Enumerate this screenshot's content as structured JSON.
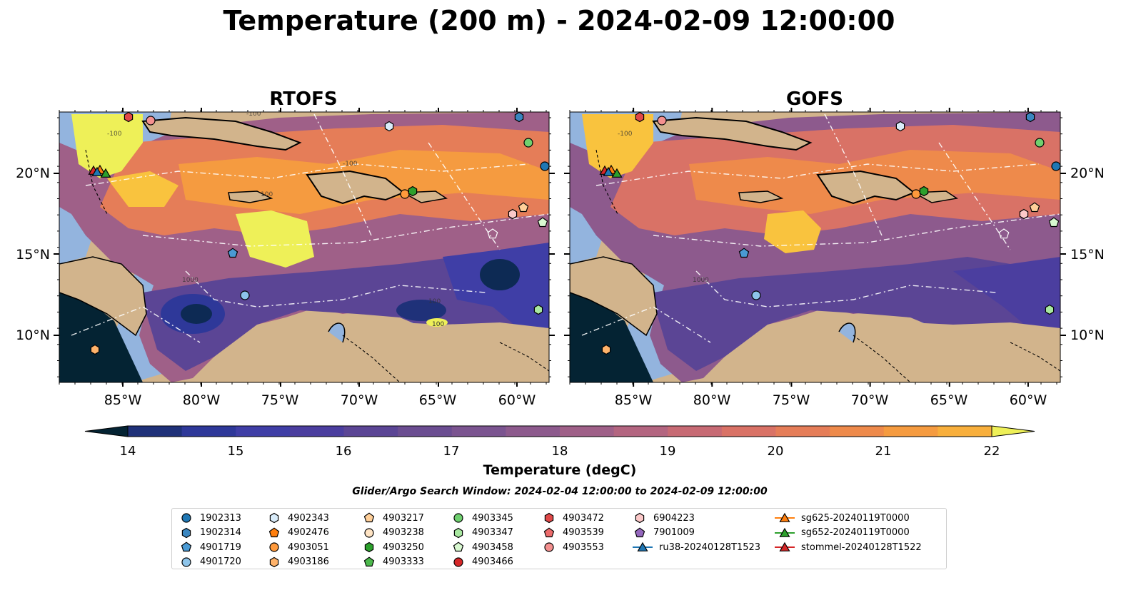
{
  "title": "Temperature (200 m) - 2024-02-09 12:00:00",
  "colors": {
    "land": "#d2b48c",
    "shallow": "#93b4de",
    "scale": [
      "#042333",
      "#0d2a54",
      "#1f3179",
      "#2e3899",
      "#3f3ea6",
      "#4b3e9f",
      "#5b4595",
      "#6b4d91",
      "#7b5490",
      "#8d5a8d",
      "#9f6088",
      "#b36580",
      "#c76a74",
      "#d97266",
      "#e57d58",
      "#ee8a4b",
      "#f59b40",
      "#f8af3c",
      "#f9c33e",
      "#f7d947",
      "#eef058"
    ]
  },
  "panels": [
    {
      "title": "RTOFS",
      "xticks": [
        "85°W",
        "80°W",
        "75°W",
        "70°W",
        "65°W",
        "60°W"
      ],
      "yticks": [
        "20°N",
        "15°N",
        "10°N"
      ],
      "contour_labels": [
        "-100",
        "-100",
        "100",
        "1000",
        "-100",
        "100",
        "100"
      ]
    },
    {
      "title": "GOFS",
      "xticks": [
        "85°W",
        "80°W",
        "75°W",
        "70°W",
        "65°W",
        "60°W"
      ],
      "yticks": [
        "20°N",
        "15°N",
        "10°N"
      ],
      "contour_labels": [
        "-100",
        "1000"
      ]
    }
  ],
  "colorbar": {
    "label": "Temperature (degC)",
    "ticks": [
      "14",
      "15",
      "16",
      "17",
      "18",
      "19",
      "20",
      "21",
      "22"
    ]
  },
  "subtitle": "Glider/Argo Search Window: 2024-02-04 12:00:00 to 2024-02-09 12:00:00",
  "legend": [
    {
      "label": "1902313",
      "marker": "circle",
      "color": "#1f77b4"
    },
    {
      "label": "1902314",
      "marker": "hexagon",
      "color": "#3a86c0"
    },
    {
      "label": "4901719",
      "marker": "pentagon",
      "color": "#4a9ad4"
    },
    {
      "label": "4901720",
      "marker": "circle",
      "color": "#8dc4ea"
    },
    {
      "label": "4902343",
      "marker": "hexagon",
      "color": "#d9ecfa"
    },
    {
      "label": "4902476",
      "marker": "pentagon",
      "color": "#ff7f0e"
    },
    {
      "label": "4903051",
      "marker": "circle",
      "color": "#ff9a3c"
    },
    {
      "label": "4903186",
      "marker": "hexagon",
      "color": "#ffb36b"
    },
    {
      "label": "4903217",
      "marker": "pentagon",
      "color": "#ffcf99"
    },
    {
      "label": "4903238",
      "marker": "circle",
      "color": "#ffe4c4"
    },
    {
      "label": "4903250",
      "marker": "hexagon",
      "color": "#2ca02c"
    },
    {
      "label": "4903333",
      "marker": "pentagon",
      "color": "#4cb84c"
    },
    {
      "label": "4903345",
      "marker": "circle",
      "color": "#6fd06f"
    },
    {
      "label": "4903347",
      "marker": "hexagon",
      "color": "#a8e8a0"
    },
    {
      "label": "4903458",
      "marker": "pentagon",
      "color": "#d8f8d0"
    },
    {
      "label": "4903466",
      "marker": "circle",
      "color": "#d62728"
    },
    {
      "label": "4903472",
      "marker": "hexagon",
      "color": "#e04848"
    },
    {
      "label": "4903539",
      "marker": "pentagon",
      "color": "#ec6b6b"
    },
    {
      "label": "4903553",
      "marker": "circle",
      "color": "#f4908f"
    },
    {
      "label": "6904223",
      "marker": "hexagon",
      "color": "#fbc8c8"
    },
    {
      "label": "7901009",
      "marker": "pentagon",
      "color": "#9467bd"
    },
    {
      "label": "ru38-20240128T1523",
      "marker": "triangle",
      "color": "#1f77b4"
    },
    {
      "label": "sg625-20240119T0000",
      "marker": "triangle",
      "color": "#ff7f0e"
    },
    {
      "label": "sg652-20240119T0000",
      "marker": "triangle",
      "color": "#2ca02c"
    },
    {
      "label": "stommel-20240128T1522",
      "marker": "triangle",
      "color": "#d62728"
    }
  ]
}
